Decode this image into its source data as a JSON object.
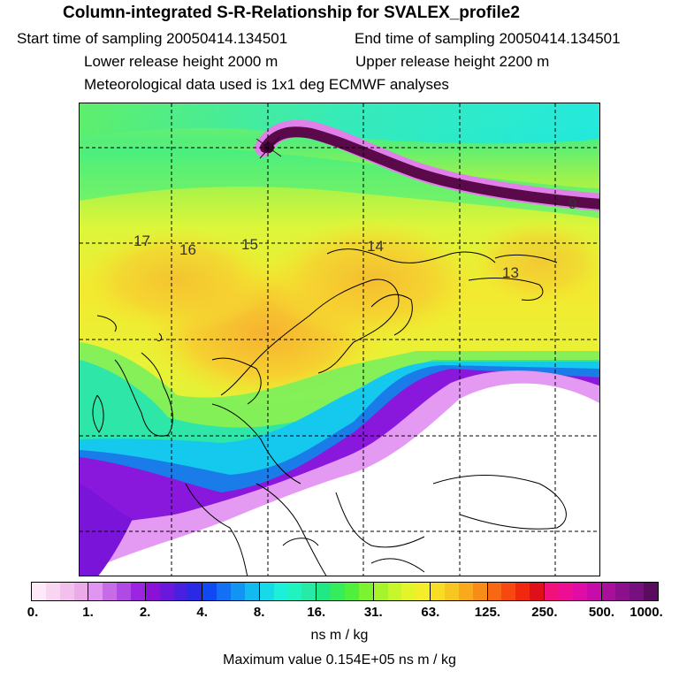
{
  "header": {
    "title": "Column-integrated S-R-Relationship for SVALEX_profile2",
    "start_time": "Start time of sampling 20050414.134501",
    "end_time": "End time of sampling 20050414.134501",
    "lower_height": "Lower release height 2000 m",
    "upper_height": "Upper release height 2200 m",
    "met_data": "Meteorological data used is 1x1 deg ECMWF analyses"
  },
  "map": {
    "contour_labels": [
      "17",
      "16",
      "15",
      "14",
      "13",
      "9"
    ],
    "colors": {
      "white_zone": "#ffffff",
      "purple": "#7d13d9",
      "blue_cyan": "#12b4f0",
      "cyan": "#1fe9e1",
      "green": "#6cf062",
      "yellow_green": "#c6f83a",
      "yellow": "#f4e82c",
      "orange": "#f7c23a",
      "plume": "#5a0a4a"
    }
  },
  "colorbar": {
    "tick_labels": [
      "0.",
      "1.",
      "2.",
      "4.",
      "8.",
      "16.",
      "31.",
      "63.",
      "125.",
      "250.",
      "500.",
      "1000."
    ],
    "segments": [
      [
        "#fde9f8",
        "#f8d6f2",
        "#f2c0ed",
        "#ebaae8"
      ],
      [
        "#e095f0",
        "#c66de6",
        "#b04ae4",
        "#9b25e0"
      ],
      [
        "#8a12d8",
        "#6a18dc",
        "#4a20e0",
        "#2a2ae6"
      ],
      [
        "#1048f4",
        "#1270f4",
        "#1096f2",
        "#12baf0"
      ],
      [
        "#16dae8",
        "#1cf0d8",
        "#20f2c0",
        "#26eaa6"
      ],
      [
        "#20e882",
        "#34ec5c",
        "#4ef03c",
        "#7cf230"
      ],
      [
        "#a8f42c",
        "#c8f62c",
        "#e2f42a",
        "#f4ee2a"
      ],
      [
        "#f8dc26",
        "#f8c620",
        "#f8aa1c",
        "#f88c18"
      ],
      [
        "#f86814",
        "#f84812",
        "#f02810",
        "#e0101a"
      ],
      [
        "#f2107c",
        "#ee0e94",
        "#e00ca6",
        "#c80caa"
      ],
      [
        "#a8109c",
        "#8c108c",
        "#76107e",
        "#5a0c5e"
      ]
    ],
    "units": "ns m / kg",
    "max_value": "Maximum value  0.154E+05 ns m / kg"
  }
}
